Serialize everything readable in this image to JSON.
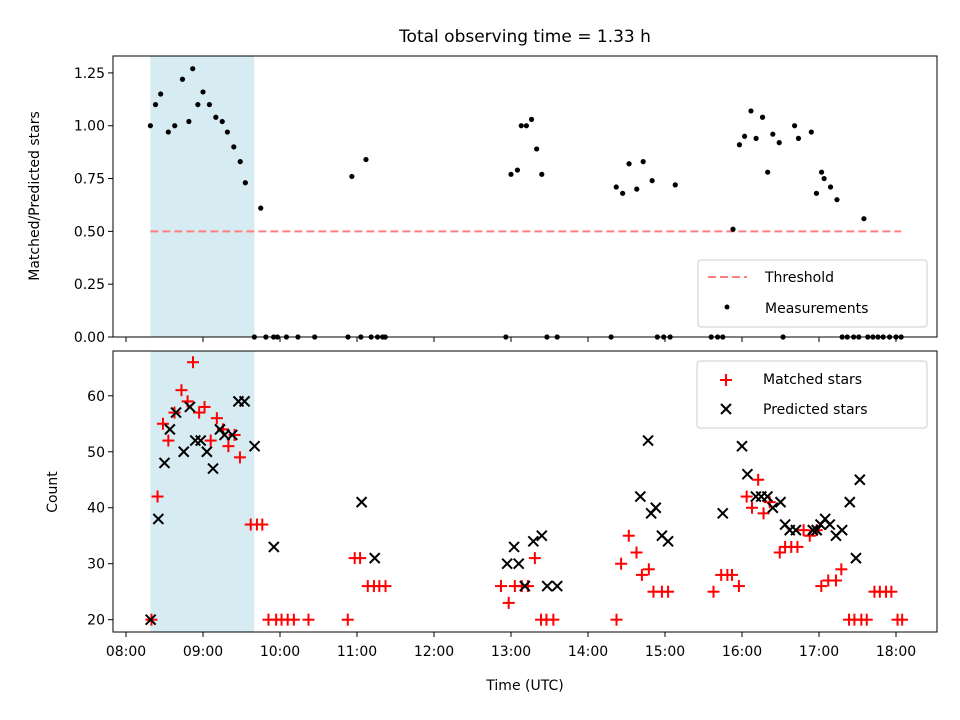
{
  "chart_data": [
    {
      "type": "scatter",
      "title": "Total observing time = 1.33 h",
      "ylabel": "Matched/Predicted stars",
      "xlabel": "",
      "xlim": [
        "08:05",
        "18:35"
      ],
      "ylim": [
        0,
        1.33
      ],
      "xticks": [
        "08:00",
        "09:00",
        "10:00",
        "11:00",
        "12:00",
        "13:00",
        "14:00",
        "15:00",
        "16:00",
        "17:00",
        "18:00"
      ],
      "yticks": [
        "0.00",
        "0.25",
        "0.50",
        "0.75",
        "1.00",
        "1.25"
      ],
      "shaded_span": [
        "08:19",
        "09:40"
      ],
      "threshold": {
        "name": "Threshold",
        "y": 0.5,
        "x": [
          "08:19",
          "18:04"
        ],
        "color": "#ff7f7f",
        "style": "dashed"
      },
      "legend": {
        "position": "lower right",
        "entries": [
          "Threshold",
          "Measurements"
        ]
      },
      "series": [
        {
          "name": "Measurements",
          "color": "#000000",
          "marker": "dot",
          "x": [
            "08:19",
            "08:23",
            "08:27",
            "08:33",
            "08:38",
            "08:44",
            "08:49",
            "08:52",
            "08:56",
            "09:00",
            "09:05",
            "09:10",
            "09:15",
            "09:19",
            "09:24",
            "09:29",
            "09:33",
            "09:40",
            "09:45",
            "09:49",
            "09:55",
            "09:58",
            "10:05",
            "10:14",
            "10:27",
            "10:53",
            "10:56",
            "11:03",
            "11:07",
            "11:11",
            "11:16",
            "11:20",
            "11:22",
            "12:56",
            "13:00",
            "13:05",
            "13:08",
            "13:12",
            "13:16",
            "13:20",
            "13:24",
            "13:28",
            "13:36",
            "14:18",
            "14:22",
            "14:27",
            "14:32",
            "14:38",
            "14:43",
            "14:50",
            "14:54",
            "14:59",
            "15:04",
            "15:08",
            "15:36",
            "15:41",
            "15:45",
            "15:53",
            "15:58",
            "16:02",
            "16:07",
            "16:11",
            "16:16",
            "16:20",
            "16:24",
            "16:29",
            "16:32",
            "16:41",
            "16:44",
            "16:54",
            "16:58",
            "17:02",
            "17:04",
            "17:09",
            "17:14",
            "17:18",
            "17:22",
            "17:27",
            "17:31",
            "17:35",
            "17:38",
            "17:42",
            "17:46",
            "17:50",
            "17:55",
            "18:00",
            "18:04"
          ],
          "y": [
            1.0,
            1.1,
            1.15,
            0.97,
            1.0,
            1.22,
            1.02,
            1.27,
            1.1,
            1.16,
            1.1,
            1.04,
            1.02,
            0.97,
            0.9,
            0.83,
            0.73,
            0.0,
            0.61,
            0.0,
            0.0,
            0.0,
            0.0,
            0.0,
            0.0,
            0.0,
            0.76,
            0.0,
            0.84,
            0.0,
            0.0,
            0.0,
            0.0,
            0.0,
            0.77,
            0.79,
            1.0,
            1.0,
            1.03,
            0.89,
            0.77,
            0.0,
            0.0,
            0.0,
            0.71,
            0.68,
            0.82,
            0.7,
            0.83,
            0.74,
            0.0,
            0.0,
            0.0,
            0.72,
            0.0,
            0.0,
            0.0,
            0.51,
            0.91,
            0.95,
            1.07,
            0.94,
            1.04,
            0.78,
            0.96,
            0.92,
            0.0,
            1.0,
            0.94,
            0.97,
            0.68,
            0.78,
            0.75,
            0.71,
            0.65,
            0.0,
            0.0,
            0.0,
            0.0,
            0.56,
            0.0,
            0.0,
            0.0,
            0.0,
            0.0,
            0.0,
            0.0
          ]
        }
      ]
    },
    {
      "type": "scatter",
      "title": "",
      "xlabel": "Time (UTC)",
      "ylabel": "Count",
      "xlim": [
        "08:05",
        "18:35"
      ],
      "ylim": [
        18,
        68
      ],
      "xticks": [
        "08:00",
        "09:00",
        "10:00",
        "11:00",
        "12:00",
        "13:00",
        "14:00",
        "15:00",
        "16:00",
        "17:00",
        "18:00"
      ],
      "yticks": [
        "20",
        "30",
        "40",
        "50",
        "60"
      ],
      "shaded_span": [
        "08:19",
        "09:40"
      ],
      "legend": {
        "position": "upper right",
        "entries": [
          "Matched stars",
          "Predicted stars"
        ]
      },
      "series": [
        {
          "name": "Matched stars",
          "color": "#ff0000",
          "marker": "plus",
          "x": [
            "08:20",
            "08:25",
            "08:30",
            "08:35",
            "08:40",
            "08:45",
            "08:50",
            "08:55",
            "09:00",
            "09:05",
            "09:10",
            "09:15",
            "09:20",
            "09:25",
            "09:30",
            "09:35",
            "09:40",
            "09:45",
            "09:50",
            "09:55",
            "10:00",
            "10:05",
            "10:10",
            "10:15",
            "10:25",
            "10:55",
            "11:00",
            "11:05",
            "11:10",
            "11:15",
            "11:20",
            "11:25",
            "12:55",
            "13:00",
            "13:05",
            "13:10",
            "13:15",
            "13:20",
            "13:25",
            "13:30",
            "13:35",
            "14:25",
            "14:30",
            "14:35",
            "14:40",
            "14:45",
            "14:50",
            "14:55",
            "15:00",
            "15:05",
            "15:35",
            "15:40",
            "15:45",
            "15:50",
            "15:55",
            "16:00",
            "16:05",
            "16:10",
            "16:15",
            "16:20",
            "16:25",
            "16:30",
            "16:35",
            "16:40",
            "16:45",
            "16:50",
            "16:55",
            "17:00",
            "17:05",
            "17:10",
            "17:15",
            "17:20",
            "17:25",
            "17:30",
            "17:35",
            "17:40",
            "17:45",
            "17:50",
            "17:55",
            "18:00",
            "18:05"
          ],
          "y": [
            20,
            42,
            55,
            52,
            57,
            61,
            59,
            66,
            57,
            58,
            52,
            56,
            54,
            51,
            53,
            49,
            37,
            37,
            37,
            20,
            20,
            20,
            20,
            20,
            20,
            20,
            31,
            31,
            26,
            26,
            26,
            26,
            26,
            23,
            26,
            26,
            26,
            31,
            20,
            20,
            20,
            20,
            30,
            35,
            32,
            28,
            29,
            25,
            25,
            25,
            25,
            28,
            28,
            28,
            26,
            42,
            40,
            45,
            39,
            41,
            32,
            33,
            33,
            33,
            36,
            35,
            36,
            26,
            27,
            27,
            29,
            20,
            20,
            20,
            20,
            25,
            25,
            25,
            25,
            20,
            20
          ],
          "xfine": [
            8.33,
            8.41,
            8.48,
            8.55,
            8.63,
            8.72,
            8.8,
            8.87,
            8.95,
            9.02,
            9.1,
            9.18,
            9.26,
            9.33,
            9.41,
            9.48,
            9.62,
            9.7,
            9.77,
            9.85,
            9.95,
            10.02,
            10.1,
            10.18,
            10.37,
            10.88,
            10.97,
            11.04,
            11.14,
            11.22,
            11.29,
            11.37,
            12.87,
            12.97,
            13.05,
            13.14,
            13.22,
            13.31,
            13.39,
            13.46,
            13.55,
            14.37,
            14.43,
            14.53,
            14.63,
            14.7,
            14.79,
            14.85,
            14.96,
            15.04,
            15.63,
            15.73,
            15.81,
            15.87,
            15.96,
            16.06,
            16.13,
            16.21,
            16.28,
            16.36,
            16.49,
            16.56,
            16.64,
            16.72,
            16.8,
            16.88,
            16.97,
            17.03,
            17.12,
            17.22,
            17.29,
            17.39,
            17.46,
            17.55,
            17.62,
            17.72,
            17.79,
            17.87,
            17.94,
            18.02,
            18.08
          ]
        },
        {
          "name": "Predicted stars",
          "color": "#000000",
          "marker": "x",
          "x": [
            "08:20",
            "08:25",
            "08:30",
            "08:35",
            "08:40",
            "08:45",
            "08:50",
            "08:55",
            "09:00",
            "09:05",
            "09:10",
            "09:15",
            "09:20",
            "09:25",
            "09:30",
            "09:35",
            "09:40",
            "09:50",
            "11:05",
            "11:10",
            "12:55",
            "13:00",
            "13:05",
            "13:10",
            "13:15",
            "13:20",
            "13:25",
            "13:30",
            "14:35",
            "14:40",
            "14:45",
            "14:50",
            "14:55",
            "15:00",
            "15:45",
            "16:00",
            "16:05",
            "16:10",
            "16:15",
            "16:20",
            "16:25",
            "16:30",
            "16:35",
            "16:40",
            "16:45",
            "16:50",
            "16:55",
            "17:00",
            "17:05",
            "17:10",
            "17:15",
            "17:20",
            "17:25",
            "17:30",
            "17:35"
          ],
          "y": [
            20,
            38,
            48,
            54,
            57,
            50,
            58,
            52,
            52,
            50,
            47,
            54,
            53,
            53,
            59,
            59,
            51,
            33,
            41,
            31,
            30,
            33,
            30,
            26,
            34,
            35,
            26,
            26,
            42,
            52,
            39,
            40,
            35,
            34,
            39,
            51,
            46,
            42,
            42,
            42,
            40,
            41,
            37,
            36,
            36,
            36,
            36,
            37,
            38,
            37,
            35,
            36,
            41,
            31,
            45
          ],
          "xfine": [
            8.32,
            8.42,
            8.5,
            8.57,
            8.65,
            8.75,
            8.83,
            8.9,
            8.97,
            9.05,
            9.13,
            9.22,
            9.28,
            9.38,
            9.46,
            9.54,
            9.67,
            9.92,
            11.06,
            11.23,
            12.95,
            13.04,
            13.1,
            13.18,
            13.29,
            13.4,
            13.47,
            13.6,
            14.68,
            14.78,
            14.82,
            14.88,
            14.96,
            15.04,
            15.75,
            16.0,
            16.07,
            16.18,
            16.25,
            16.33,
            16.4,
            16.5,
            16.56,
            16.62,
            16.7,
            16.92,
            16.97,
            17.02,
            17.08,
            17.14,
            17.22,
            17.3,
            17.4,
            17.48,
            17.53
          ]
        }
      ]
    }
  ]
}
